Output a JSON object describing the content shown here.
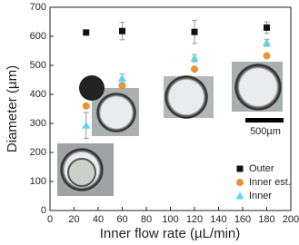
{
  "chart_data": {
    "type": "scatter",
    "x_label": "Inner flow rate (µL/min)",
    "y_label": "Diameter (µm)",
    "annotation": "500µm",
    "xlim": [
      0,
      200
    ],
    "xticks": [
      0,
      20,
      40,
      60,
      80,
      100,
      120,
      140,
      160,
      180,
      200
    ],
    "ylim": [
      0,
      700
    ],
    "yticks": [
      0,
      100,
      200,
      300,
      400,
      500,
      600,
      700
    ],
    "legend": "lower right",
    "series": [
      {
        "name": "Outer",
        "color": "#111111",
        "marker": "square",
        "x": [
          30,
          60,
          120,
          180
        ],
        "values": [
          613,
          618,
          615,
          630
        ],
        "errors": [
          8,
          30,
          40,
          20
        ]
      },
      {
        "name": "Inner est.",
        "color": "#e8952e",
        "marker": "circle",
        "x": [
          30,
          60,
          120,
          180
        ],
        "values": [
          360,
          430,
          487,
          533
        ]
      },
      {
        "name": "Inner",
        "color": "#5fd3f3",
        "marker": "triangle",
        "x": [
          30,
          60,
          120,
          180
        ],
        "values": [
          293,
          455,
          525,
          578
        ],
        "errors": [
          45,
          15,
          12,
          12
        ]
      }
    ]
  }
}
